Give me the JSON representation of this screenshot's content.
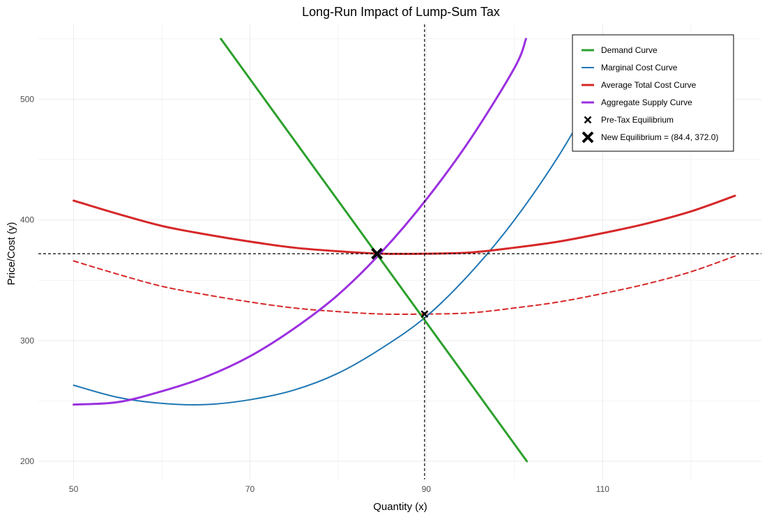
{
  "chart_data": {
    "type": "line",
    "title": "Long-Run Impact of Lump-Sum Tax",
    "xlabel": "Quantity (x)",
    "ylabel": "Price/Cost (y)",
    "xlim": [
      46,
      128
    ],
    "ylim": [
      185,
      562
    ],
    "x_ticks": [
      50,
      70,
      90,
      110
    ],
    "y_ticks": [
      200,
      300,
      400,
      500
    ],
    "grid": true,
    "legend_position": "top-right",
    "series": [
      {
        "name": "Demand Curve",
        "color": "#2ca02c",
        "style": "solid",
        "width": "thick",
        "x": [
          66.7,
          101.4
        ],
        "y": [
          550,
          200
        ]
      },
      {
        "name": "Marginal Cost Curve",
        "color": "#1f77b4",
        "style": "solid",
        "width": "normal",
        "x": [
          50,
          55,
          60,
          65,
          70,
          75,
          80,
          85,
          90,
          95,
          100,
          105,
          110,
          113
        ],
        "y": [
          263,
          253,
          248,
          247,
          251,
          259,
          273,
          294,
          320,
          356,
          400,
          453,
          515,
          550
        ]
      },
      {
        "name": "Average Total Cost Curve",
        "color": "#d62728",
        "style": "solid",
        "width": "thick",
        "x": [
          50,
          55,
          60,
          65,
          70,
          75,
          80,
          85,
          90,
          95,
          100,
          105,
          110,
          115,
          120,
          125
        ],
        "y": [
          416,
          405,
          395,
          388,
          382,
          377,
          374,
          372,
          372,
          373,
          377,
          382,
          389,
          397,
          407,
          420
        ]
      },
      {
        "name": "Average Total Cost Curve (pre-tax)",
        "color": "#d62728",
        "style": "dashed",
        "width": "normal",
        "x": [
          50,
          55,
          60,
          65,
          70,
          75,
          80,
          85,
          90,
          95,
          100,
          105,
          110,
          115,
          120,
          125
        ],
        "y": [
          366,
          355,
          345,
          338,
          332,
          327,
          324,
          322,
          322,
          323,
          327,
          332,
          339,
          347,
          357,
          370
        ]
      },
      {
        "name": "Aggregate Supply Curve",
        "color": "#9b30e0",
        "style": "solid",
        "width": "thick",
        "x": [
          50,
          55,
          60,
          65,
          70,
          75,
          80,
          85,
          90,
          95,
          100,
          101.3
        ],
        "y": [
          247,
          249,
          258,
          270,
          287,
          310,
          338,
          374,
          417,
          467,
          526,
          550
        ]
      }
    ],
    "reference_lines": {
      "vertical_x": 89.8,
      "horizontal_y": 372
    },
    "points": [
      {
        "name": "Pre-Tax Equilibrium",
        "x": 89.8,
        "y": 322,
        "marker": "x-small"
      },
      {
        "name": "New Equilibrium = (84.4, 372.0)",
        "x": 84.4,
        "y": 372,
        "marker": "x-large"
      }
    ]
  }
}
